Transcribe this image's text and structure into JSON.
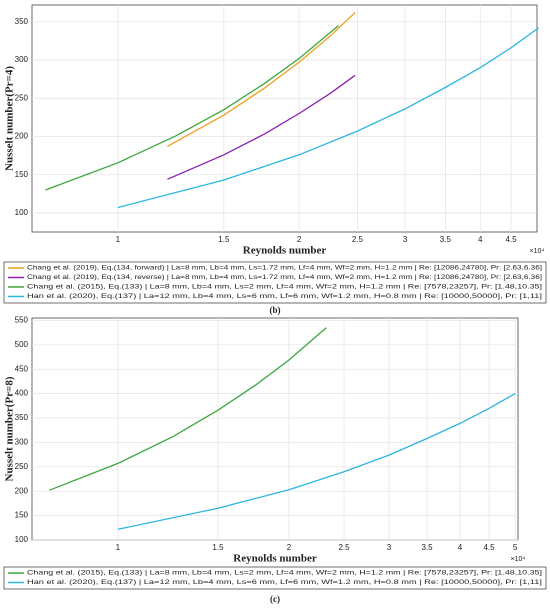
{
  "chart_data": [
    {
      "type": "line",
      "panel_label": "(b)",
      "x_label": "Reynolds number",
      "y_label": "Nusselt number(Pr=4)",
      "x_scale_label": "×10⁴",
      "xscale": "log",
      "xlim": [
        0.72,
        4.97
      ],
      "xticks": [
        1,
        1.5,
        2,
        2.5,
        3,
        3.5,
        4,
        4.5
      ],
      "ylim": [
        75,
        372
      ],
      "yticks": [
        100,
        150,
        200,
        250,
        300,
        350
      ],
      "grid": true,
      "legend": "below",
      "series": [
        {
          "name": "Chang et al. (2019), Eq.(134, forward) | La=8 mm, Lb=4 mm, Ls=1.72 mm, Lf=4 mm, Wf=2 mm, H=1.2 mm | Re: [12086,24780], Pr: [2.63,6.36]",
          "color": "#f0a020",
          "x": [
            1.2086,
            1.5,
            1.75,
            2,
            2.25,
            2.478
          ],
          "values": [
            187,
            228,
            263,
            297,
            331,
            362
          ]
        },
        {
          "name": "Chang et al. (2019), Eq.(134, reverse) | La=8 mm, Lb=4 mm, Ls=1.72 mm, Lf=4 mm, Wf=2 mm, H=1.2 mm | Re: [12086,24780], Pr: [2.63,6.36]",
          "color": "#8a1fb0",
          "x": [
            1.2086,
            1.5,
            1.75,
            2,
            2.25,
            2.478
          ],
          "values": [
            144,
            176,
            203,
            230,
            256,
            280
          ]
        },
        {
          "name": "Chang et al. (2015), Eq.(133) | La=8 mm, Lb=4 mm, Ls=2 mm, Lf=4 mm, Wf=2 mm, H=1.2 mm | Re: [7578,23257], Pr: [1.48,10.35]",
          "color": "#3da63d",
          "x": [
            0.7578,
            1,
            1.25,
            1.5,
            1.75,
            2,
            2.3257
          ],
          "values": [
            130,
            165.5,
            201,
            235,
            269,
            302,
            345
          ]
        },
        {
          "name": "Han et al. (2020), Eq.(137) | La=12 mm, Lb=4 mm, Ls=6 mm, Lf=6 mm, Wf=1.2 mm, H=0.8 mm | Re: [10000,50000], Pr: [1,11]",
          "color": "#2bb5e0",
          "x": [
            1,
            1.5,
            2,
            2.5,
            3,
            3.5,
            4,
            4.5,
            5
          ],
          "values": [
            107,
            143,
            176,
            207,
            236,
            264,
            290,
            316,
            342
          ]
        }
      ]
    },
    {
      "type": "line",
      "panel_label": "(c)",
      "x_label": "Reynolds number",
      "y_label": "Nusselt number(Pr=8)",
      "x_scale_label": "×10⁴",
      "xscale": "log",
      "xlim": [
        0.706,
        5.06
      ],
      "xticks": [
        1,
        1.5,
        2,
        2.5,
        3,
        3.5,
        4,
        4.5,
        5
      ],
      "ylim": [
        100,
        555
      ],
      "yticks": [
        100,
        150,
        200,
        250,
        300,
        350,
        400,
        450,
        500,
        550
      ],
      "grid": true,
      "legend": "below",
      "series": [
        {
          "name": "Chang et al. (2015), Eq.(133) | La=8 mm, Lb=4 mm, Ls=2 mm, Lf=4 mm, Wf=2 mm, H=1.2 mm | Re: [7578,23257], Pr: [1.48,10.35]",
          "color": "#3da63d",
          "x": [
            0.7578,
            1,
            1.25,
            1.5,
            1.75,
            2,
            2.3257
          ],
          "values": [
            202,
            257,
            312,
            366,
            418,
            469,
            535
          ]
        },
        {
          "name": "Han et al. (2020), Eq.(137) | La=12 mm, Lb=4 mm, Ls=6 mm, Lf=6 mm, Wf=1.2 mm, H=0.8 mm | Re: [10000,50000], Pr: [1,11]",
          "color": "#2bb5e0",
          "x": [
            1,
            1.5,
            2,
            2.5,
            3,
            3.5,
            4,
            4.5,
            5
          ],
          "values": [
            122,
            165,
            203,
            240,
            274,
            308,
            339,
            370,
            400
          ]
        }
      ]
    }
  ]
}
